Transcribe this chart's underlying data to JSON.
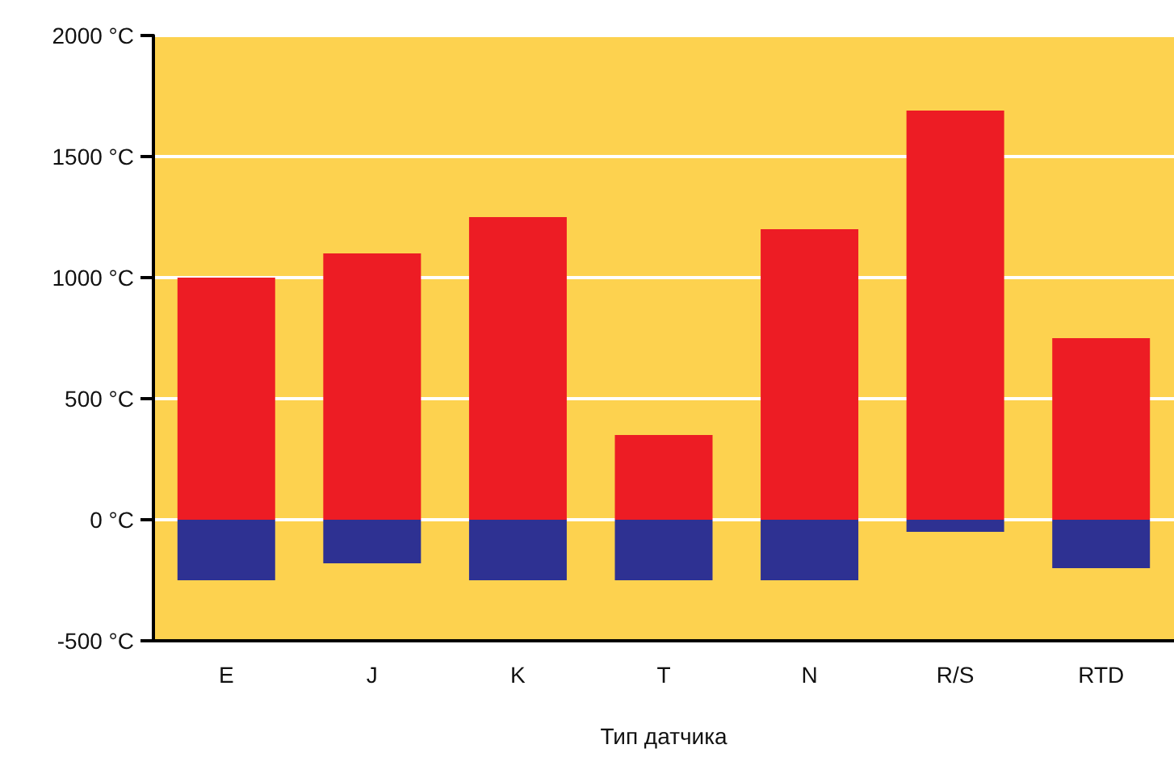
{
  "chart_data": {
    "type": "bar",
    "xlabel": "Тип датчика",
    "categories": [
      "E",
      "J",
      "K",
      "T",
      "N",
      "R/S",
      "RTD"
    ],
    "stacked": true,
    "series": [
      {
        "color": "#ed1c24",
        "values": [
          1000,
          1100,
          1250,
          350,
          1200,
          1690,
          750
        ]
      },
      {
        "color": "#2e3192",
        "values": [
          -250,
          -180,
          -250,
          -250,
          -250,
          -50,
          -200
        ]
      }
    ],
    "ylim": [
      -500,
      2000
    ],
    "yticks": [
      {
        "value": -500,
        "label": "-500 °C"
      },
      {
        "value": 0,
        "label": "0 °C"
      },
      {
        "value": 500,
        "label": "500 °C"
      },
      {
        "value": 1000,
        "label": "1000 °C"
      },
      {
        "value": 1500,
        "label": "1500 °C"
      },
      {
        "value": 2000,
        "label": "2000 °C"
      }
    ],
    "grid": "y"
  }
}
